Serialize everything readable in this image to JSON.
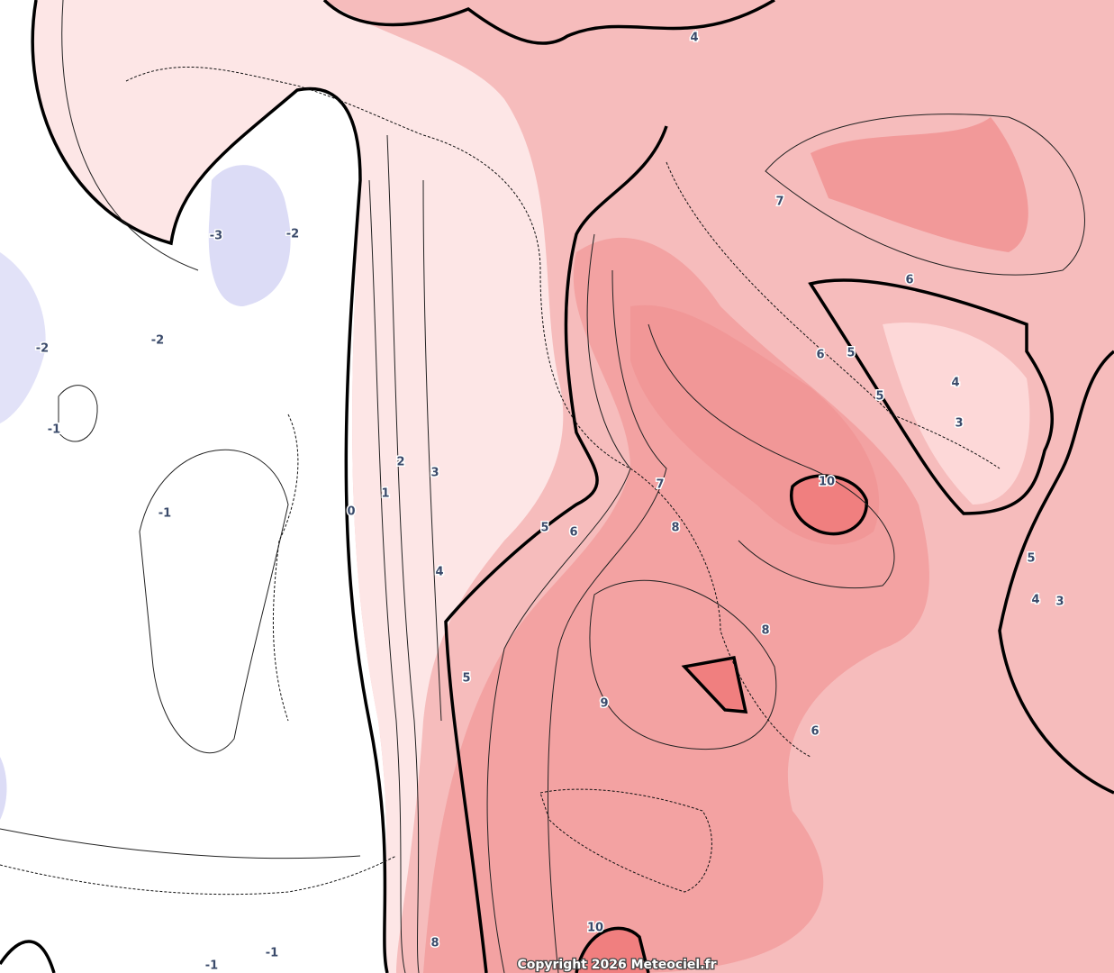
{
  "map": {
    "contour_labels": [
      4,
      -3,
      -2,
      -2,
      -2,
      -1,
      -1,
      7,
      6,
      6,
      5,
      5,
      4,
      3,
      10,
      7,
      8,
      5,
      6,
      2,
      3,
      1,
      0,
      4,
      5,
      4,
      3,
      8,
      5,
      9,
      6,
      10,
      8,
      -1,
      -1
    ],
    "copyright": "Copyright 2026 Meteociel.fr"
  }
}
